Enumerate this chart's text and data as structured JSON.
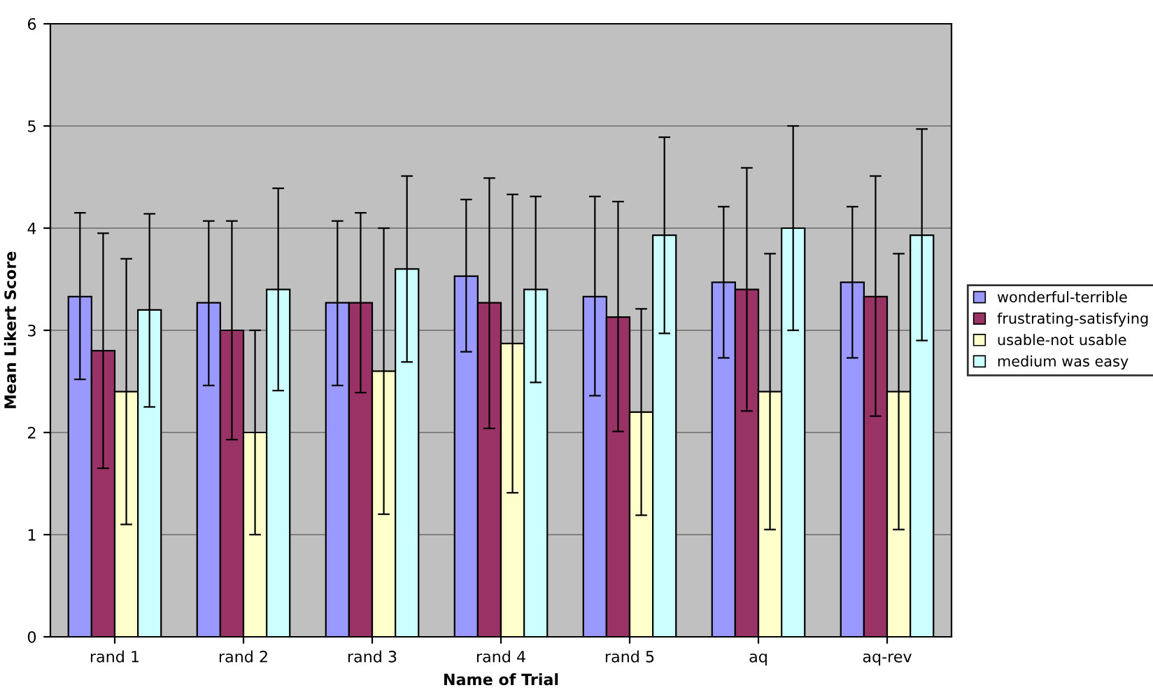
{
  "chart_data": {
    "type": "bar",
    "xlabel": "Name of Trial",
    "ylabel": "Mean Likert Score",
    "categories": [
      "rand 1",
      "rand 2",
      "rand 3",
      "rand 4",
      "rand 5",
      "aq",
      "aq-rev"
    ],
    "ylim": [
      0,
      6
    ],
    "yticks": [
      0,
      1,
      2,
      3,
      4,
      5,
      6
    ],
    "grid": "y",
    "legend": "right",
    "series": [
      {
        "name": "wonderful-terrible",
        "color": "#9999ff",
        "values": [
          3.33,
          3.27,
          3.27,
          3.53,
          3.33,
          3.47,
          3.47
        ],
        "errors": [
          [
            2.52,
            4.15
          ],
          [
            2.46,
            4.07
          ],
          [
            2.46,
            4.07
          ],
          [
            2.79,
            4.28
          ],
          [
            2.36,
            4.31
          ],
          [
            2.73,
            4.21
          ],
          [
            2.73,
            4.21
          ]
        ]
      },
      {
        "name": "frustrating-satisfying",
        "color": "#993366",
        "values": [
          2.8,
          3.0,
          3.27,
          3.27,
          3.13,
          3.4,
          3.33
        ],
        "errors": [
          [
            1.65,
            3.95
          ],
          [
            1.93,
            4.07
          ],
          [
            2.39,
            4.15
          ],
          [
            2.04,
            4.49
          ],
          [
            2.01,
            4.26
          ],
          [
            2.21,
            4.59
          ],
          [
            2.16,
            4.51
          ]
        ]
      },
      {
        "name": "usable-not usable",
        "color": "#ffffcc",
        "values": [
          2.4,
          2.0,
          2.6,
          2.87,
          2.2,
          2.4,
          2.4
        ],
        "errors": [
          [
            1.1,
            3.7
          ],
          [
            1.0,
            3.0
          ],
          [
            1.2,
            4.0
          ],
          [
            1.41,
            4.33
          ],
          [
            1.19,
            3.21
          ],
          [
            1.05,
            3.75
          ],
          [
            1.05,
            3.75
          ]
        ]
      },
      {
        "name": "medium was easy",
        "color": "#ccffff",
        "values": [
          3.2,
          3.4,
          3.6,
          3.4,
          3.93,
          4.0,
          3.93
        ],
        "errors": [
          [
            2.25,
            4.14
          ],
          [
            2.41,
            4.39
          ],
          [
            2.69,
            4.51
          ],
          [
            2.49,
            4.31
          ],
          [
            2.97,
            4.89
          ],
          [
            3.0,
            5.0
          ],
          [
            2.9,
            4.97
          ]
        ]
      }
    ]
  }
}
